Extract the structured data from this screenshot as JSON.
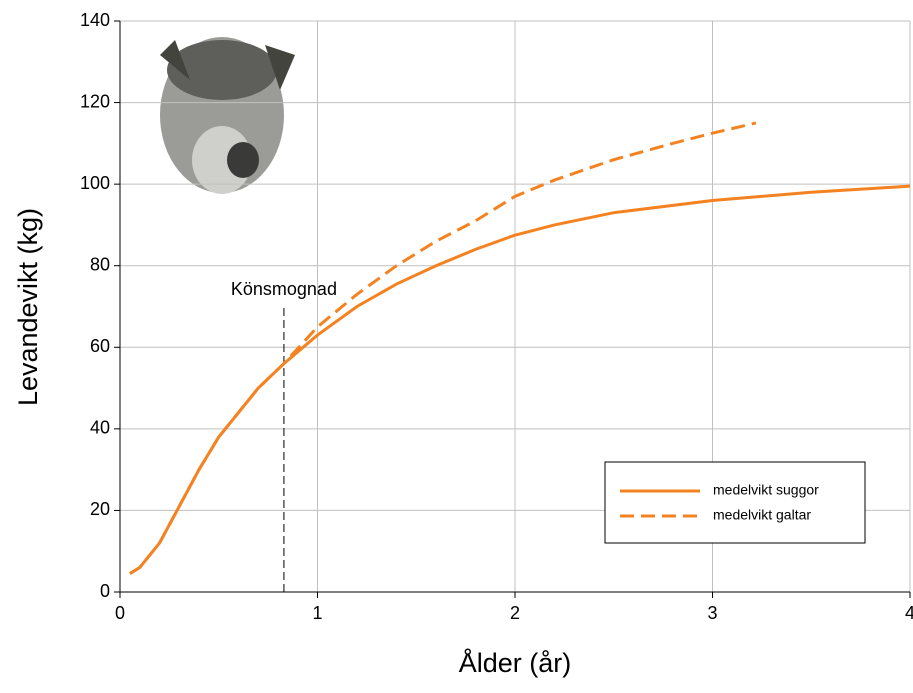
{
  "chart_data": {
    "type": "line",
    "x_label": "Ålder (år)",
    "y_label": "Levandevikt (kg)",
    "xlim": [
      0,
      4
    ],
    "xticks": [
      0,
      1,
      2,
      3,
      4
    ],
    "ylim": [
      0,
      140
    ],
    "yticks": [
      0,
      20,
      40,
      60,
      80,
      100,
      120,
      140
    ],
    "grid": true,
    "legend": "lower right",
    "series": [
      {
        "name": "medelvikt suggor",
        "color": "#f58220",
        "dash": "solid",
        "x": [
          0.05,
          0.1,
          0.2,
          0.3,
          0.4,
          0.5,
          0.6,
          0.7,
          0.83,
          1.0,
          1.2,
          1.4,
          1.6,
          1.8,
          2.0,
          2.2,
          2.5,
          3.0,
          3.5,
          4.0
        ],
        "values": [
          4.5,
          6,
          12,
          21,
          30,
          38,
          44,
          50,
          56,
          63,
          70,
          75.5,
          80,
          84,
          87.5,
          90,
          93,
          96,
          98,
          99.5
        ]
      },
      {
        "name": "medelvikt galtar",
        "color": "#f58220",
        "dash": "dashed",
        "x": [
          0.05,
          0.1,
          0.2,
          0.3,
          0.4,
          0.5,
          0.6,
          0.7,
          0.83,
          1.0,
          1.2,
          1.4,
          1.6,
          1.8,
          2.0,
          2.2,
          2.5,
          2.8,
          3.0,
          3.22
        ],
        "values": [
          4.5,
          6,
          12,
          21,
          30,
          38,
          44,
          50,
          56,
          65,
          73,
          80,
          86,
          91,
          97,
          101,
          106,
          110,
          112.5,
          115
        ]
      }
    ],
    "annotation": {
      "text": "Könsmognad",
      "x": 0.83
    }
  }
}
